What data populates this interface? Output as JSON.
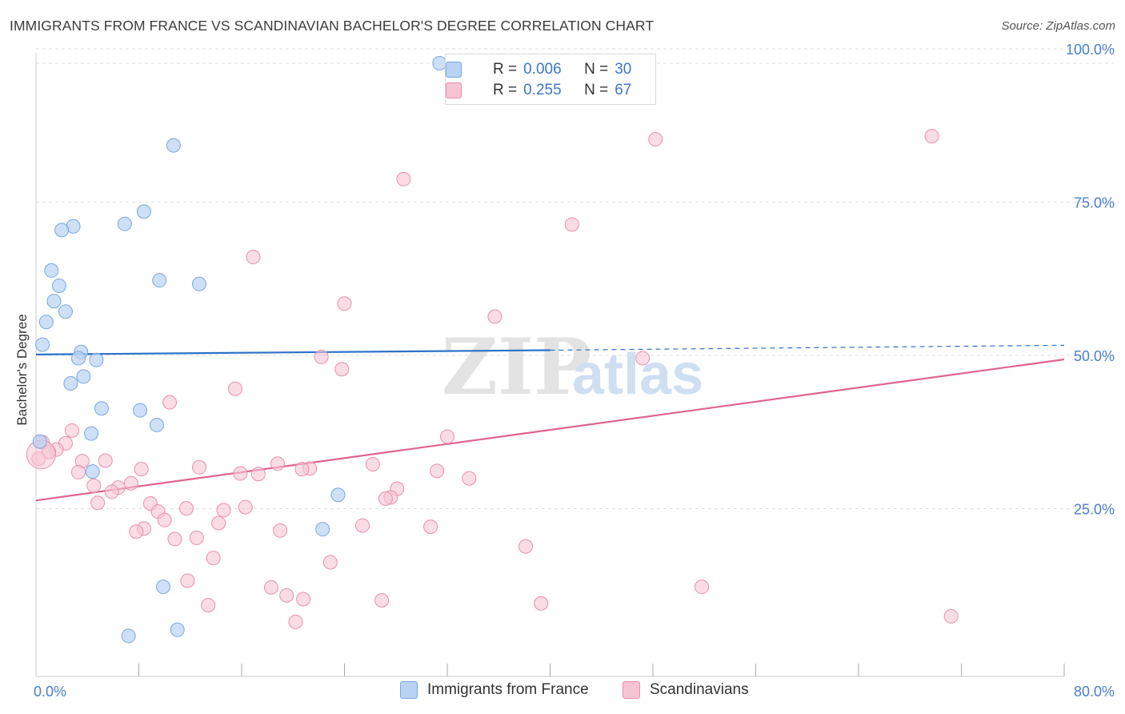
{
  "header": {
    "title": "IMMIGRANTS FROM FRANCE VS SCANDINAVIAN BACHELOR'S DEGREE CORRELATION CHART",
    "source": "Source: ZipAtlas.com"
  },
  "legend_top": {
    "rows": [
      {
        "r_label": "R =",
        "r_value": "0.006",
        "n_label": "N =",
        "n_value": "30"
      },
      {
        "r_label": "R =",
        "r_value": "0.255",
        "n_label": "N =",
        "n_value": "67"
      }
    ]
  },
  "legend_bottom": {
    "items": [
      "Immigrants from France",
      "Scandinavians"
    ]
  },
  "watermark": {
    "zip": "ZIP",
    "atlas": "atlas"
  },
  "colors": {
    "france_fill": "#b8d3f3",
    "france_stroke": "#7aa6de",
    "france_line": "#2a72c8",
    "scand_fill": "#f7c4d4",
    "scand_stroke": "#e98fab",
    "scand_line": "#e0648f",
    "tick_color": "#4a7fc8",
    "grid": "#dddddd"
  },
  "chart_data": {
    "type": "scatter",
    "title": "IMMIGRANTS FROM FRANCE VS SCANDINAVIAN BACHELOR'S DEGREE CORRELATION CHART",
    "xlabel": "",
    "ylabel": "Bachelor's Degree",
    "xlim": [
      0,
      80
    ],
    "ylim": [
      0,
      100
    ],
    "x_tick_labels": [
      "0.0%",
      "80.0%"
    ],
    "y_ticks": [
      25,
      50,
      75,
      100
    ],
    "y_tick_labels": [
      "25.0%",
      "50.0%",
      "75.0%",
      "100.0%"
    ],
    "grid": true,
    "series": [
      {
        "name": "Immigrants from France",
        "r": 0.006,
        "n": 30,
        "trend": {
          "x": [
            0,
            40
          ],
          "y": [
            52.5,
            53.2
          ],
          "dashed_x": [
            40,
            80
          ],
          "dashed_y": [
            53.2,
            54
          ]
        },
        "points": [
          [
            31.4,
            100
          ],
          [
            10.7,
            86.6
          ],
          [
            8.4,
            75.8
          ],
          [
            6.9,
            73.8
          ],
          [
            2.9,
            73.4
          ],
          [
            2.0,
            72.8
          ],
          [
            1.2,
            66.2
          ],
          [
            9.6,
            64.6
          ],
          [
            12.7,
            64.0
          ],
          [
            1.8,
            63.7
          ],
          [
            1.4,
            61.2
          ],
          [
            2.3,
            59.5
          ],
          [
            0.8,
            57.8
          ],
          [
            0.5,
            54.1
          ],
          [
            3.5,
            52.9
          ],
          [
            3.3,
            51.9
          ],
          [
            4.7,
            51.6
          ],
          [
            3.7,
            48.9
          ],
          [
            2.7,
            47.8
          ],
          [
            5.1,
            43.7
          ],
          [
            8.1,
            43.4
          ],
          [
            9.4,
            41.0
          ],
          [
            4.3,
            39.6
          ],
          [
            0.3,
            38.3
          ],
          [
            4.4,
            33.4
          ],
          [
            23.5,
            29.6
          ],
          [
            22.3,
            24.0
          ],
          [
            9.9,
            14.6
          ],
          [
            11.0,
            7.6
          ],
          [
            7.2,
            6.6
          ]
        ]
      },
      {
        "name": "Scandinavians",
        "r": 0.255,
        "n": 67,
        "trend": {
          "x": [
            0,
            80
          ],
          "y": [
            28.7,
            51.7
          ]
        },
        "points": [
          [
            48.2,
            87.6
          ],
          [
            69.7,
            88.1
          ],
          [
            28.6,
            81.1
          ],
          [
            41.7,
            73.7
          ],
          [
            16.9,
            68.4
          ],
          [
            24.0,
            60.8
          ],
          [
            35.7,
            58.7
          ],
          [
            22.2,
            52.1
          ],
          [
            23.8,
            50.1
          ],
          [
            47.2,
            51.9
          ],
          [
            15.5,
            46.9
          ],
          [
            10.4,
            44.7
          ],
          [
            2.8,
            40.1
          ],
          [
            32.0,
            39.1
          ],
          [
            0.5,
            38.2
          ],
          [
            2.3,
            38.0
          ],
          [
            1.6,
            37.0
          ],
          [
            1.0,
            36.6
          ],
          [
            0.2,
            35.5
          ],
          [
            5.4,
            35.2
          ],
          [
            3.6,
            35.1
          ],
          [
            18.8,
            34.7
          ],
          [
            26.2,
            34.6
          ],
          [
            12.7,
            34.1
          ],
          [
            8.2,
            33.8
          ],
          [
            21.3,
            33.9
          ],
          [
            20.7,
            33.8
          ],
          [
            3.3,
            33.3
          ],
          [
            31.2,
            33.5
          ],
          [
            15.9,
            33.1
          ],
          [
            17.3,
            33.0
          ],
          [
            33.7,
            32.3
          ],
          [
            7.4,
            31.5
          ],
          [
            4.5,
            31.1
          ],
          [
            6.4,
            30.8
          ],
          [
            28.1,
            30.6
          ],
          [
            5.9,
            30.1
          ],
          [
            27.6,
            29.2
          ],
          [
            27.2,
            29.0
          ],
          [
            4.8,
            28.3
          ],
          [
            8.9,
            28.2
          ],
          [
            16.3,
            27.6
          ],
          [
            11.7,
            27.4
          ],
          [
            14.6,
            27.1
          ],
          [
            9.5,
            26.9
          ],
          [
            10.0,
            25.5
          ],
          [
            14.2,
            25.0
          ],
          [
            25.4,
            24.6
          ],
          [
            30.7,
            24.4
          ],
          [
            8.4,
            24.1
          ],
          [
            7.8,
            23.6
          ],
          [
            19.0,
            23.8
          ],
          [
            12.5,
            22.6
          ],
          [
            10.8,
            22.4
          ],
          [
            38.1,
            21.2
          ],
          [
            13.8,
            19.3
          ],
          [
            22.9,
            18.6
          ],
          [
            11.8,
            15.6
          ],
          [
            18.3,
            14.5
          ],
          [
            51.8,
            14.6
          ],
          [
            19.5,
            13.2
          ],
          [
            20.8,
            12.6
          ],
          [
            26.9,
            12.4
          ],
          [
            13.4,
            11.6
          ],
          [
            39.3,
            11.9
          ],
          [
            20.2,
            8.9
          ],
          [
            71.2,
            9.8
          ]
        ]
      }
    ]
  }
}
